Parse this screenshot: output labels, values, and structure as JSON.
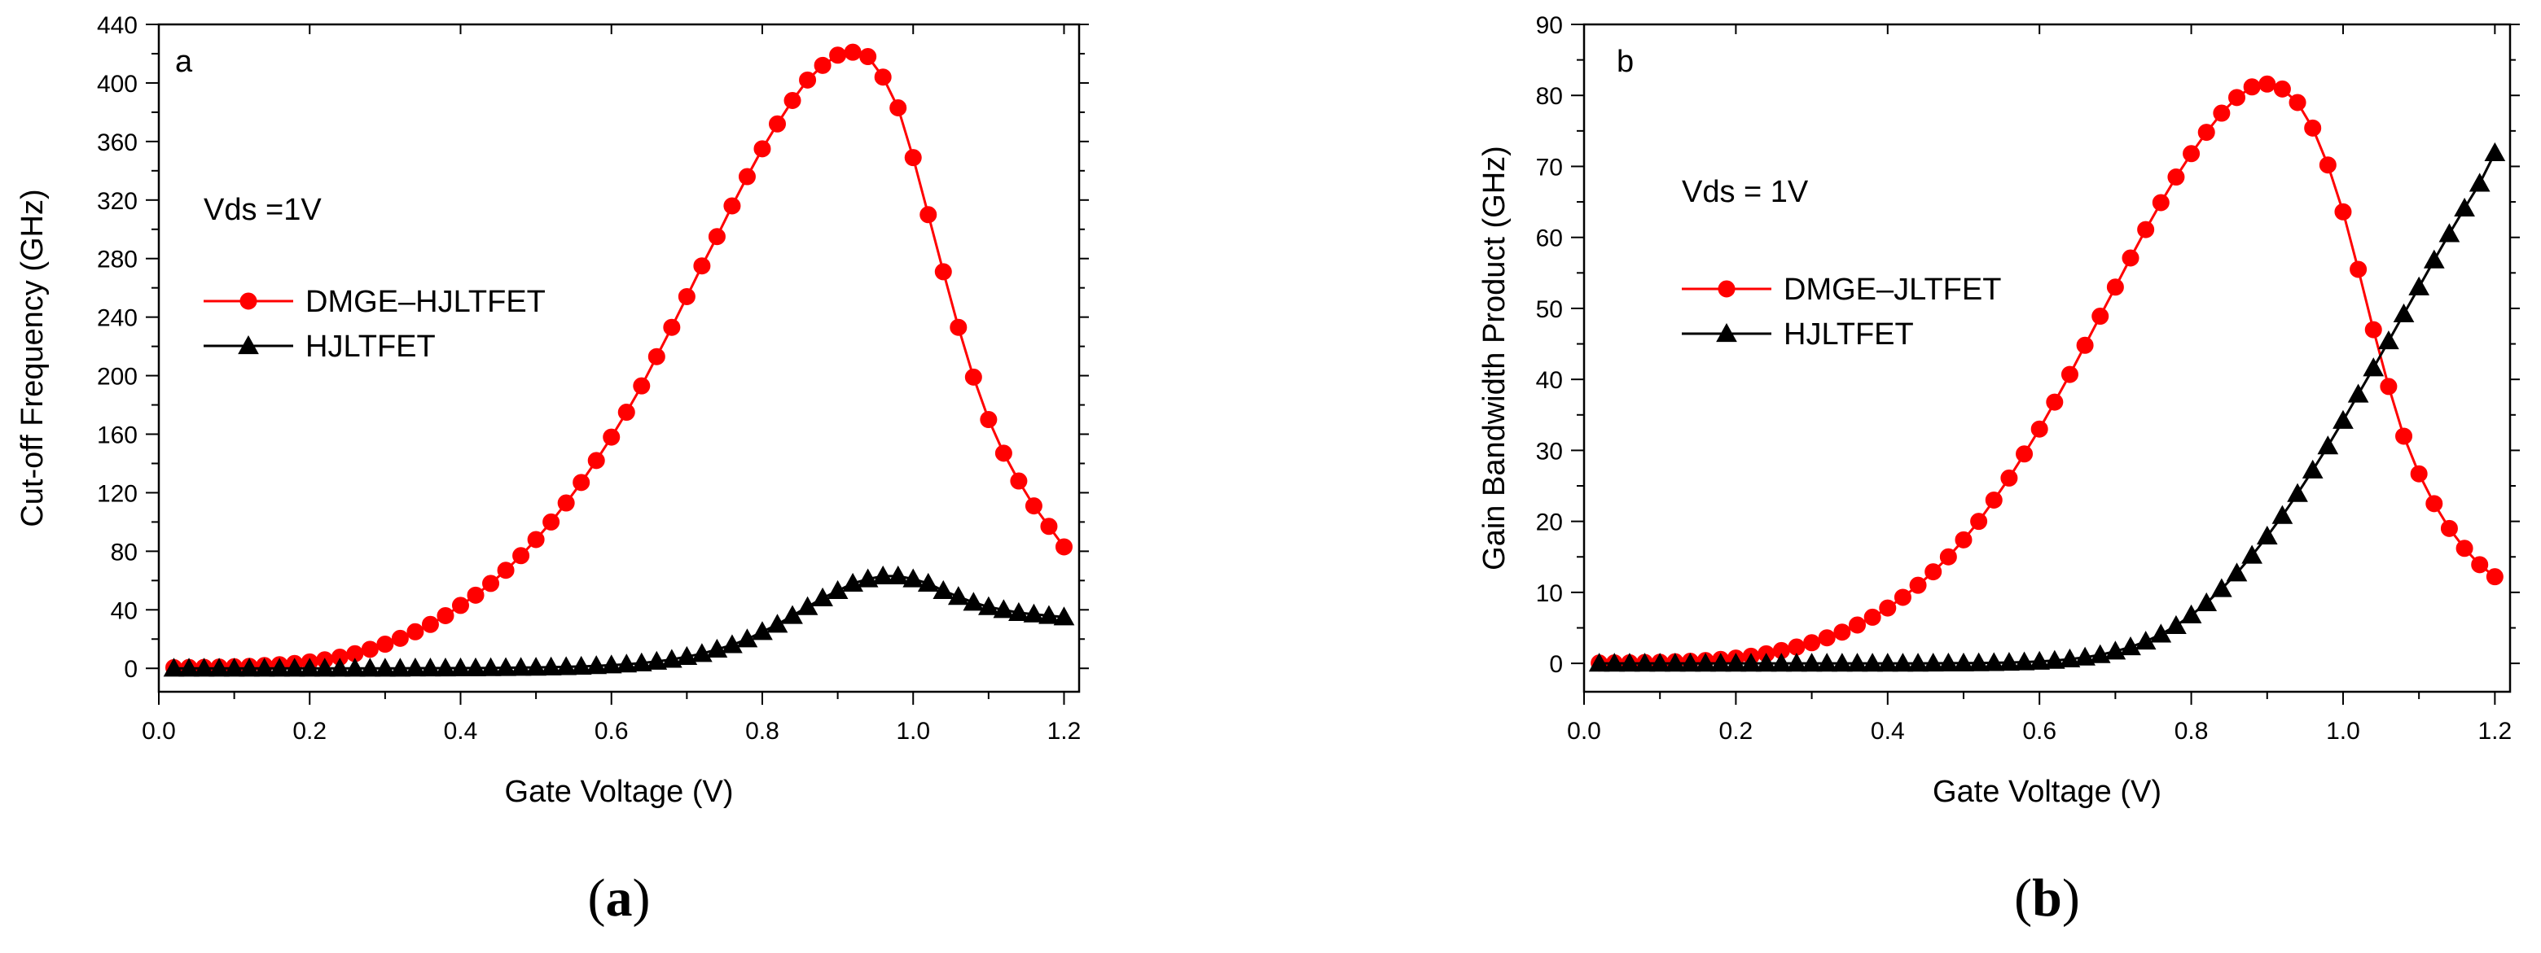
{
  "chart_data": [
    {
      "id": "a",
      "type": "line",
      "panel_letter": "a",
      "caption": {
        "open": "(",
        "letter": "a",
        "close": ")"
      },
      "annotation": "Vds =1V",
      "xlabel": "Gate Voltage (V)",
      "ylabel": "Cut-off Frequency (GHz)",
      "xlim": [
        0,
        1.22
      ],
      "ylim": [
        -16,
        440
      ],
      "xticks": [
        0.0,
        0.2,
        0.4,
        0.6,
        0.8,
        1.0,
        1.2
      ],
      "xtick_labels": [
        "0.0",
        "0.2",
        "0.4",
        "0.6",
        "0.8",
        "1.0",
        "1.2"
      ],
      "yticks": [
        0,
        40,
        80,
        120,
        160,
        200,
        240,
        280,
        320,
        360,
        400,
        440
      ],
      "ytick_labels": [
        "0",
        "40",
        "80",
        "120",
        "160",
        "200",
        "240",
        "280",
        "320",
        "360",
        "400",
        "440"
      ],
      "legend_position": "middle-left",
      "series": [
        {
          "name": "DMGE–HJLTFET",
          "color": "#ff0000",
          "marker": "circle",
          "x": [
            0.02,
            0.04,
            0.06,
            0.08,
            0.1,
            0.12,
            0.14,
            0.16,
            0.18,
            0.2,
            0.22,
            0.24,
            0.26,
            0.28,
            0.3,
            0.32,
            0.34,
            0.36,
            0.38,
            0.4,
            0.42,
            0.44,
            0.46,
            0.48,
            0.5,
            0.52,
            0.54,
            0.56,
            0.58,
            0.6,
            0.62,
            0.64,
            0.66,
            0.68,
            0.7,
            0.72,
            0.74,
            0.76,
            0.78,
            0.8,
            0.82,
            0.84,
            0.86,
            0.88,
            0.9,
            0.92,
            0.94,
            0.96,
            0.98,
            1.0,
            1.02,
            1.04,
            1.06,
            1.08,
            1.1,
            1.12,
            1.14,
            1.16,
            1.18,
            1.2
          ],
          "y": [
            0.5,
            0.6,
            0.7,
            0.9,
            1.1,
            1.4,
            1.9,
            2.5,
            3.3,
            4.4,
            5.8,
            7.6,
            10,
            13,
            16.5,
            20.5,
            25,
            30,
            36,
            43,
            50,
            58,
            67,
            77,
            88,
            100,
            113,
            127,
            142,
            158,
            175,
            193,
            213,
            233,
            254,
            275,
            295,
            316,
            336,
            355,
            372,
            388,
            402,
            412,
            419,
            421,
            418,
            404,
            383,
            349,
            310,
            271,
            233,
            199,
            170,
            147,
            128,
            111,
            97,
            83
          ]
        },
        {
          "name": "HJLTFET",
          "color": "#000000",
          "marker": "triangle",
          "x": [
            0.02,
            0.04,
            0.06,
            0.08,
            0.1,
            0.12,
            0.14,
            0.16,
            0.18,
            0.2,
            0.22,
            0.24,
            0.26,
            0.28,
            0.3,
            0.32,
            0.34,
            0.36,
            0.38,
            0.4,
            0.42,
            0.44,
            0.46,
            0.48,
            0.5,
            0.52,
            0.54,
            0.56,
            0.58,
            0.6,
            0.62,
            0.64,
            0.66,
            0.68,
            0.7,
            0.72,
            0.74,
            0.76,
            0.78,
            0.8,
            0.82,
            0.84,
            0.86,
            0.88,
            0.9,
            0.92,
            0.94,
            0.96,
            0.98,
            1.0,
            1.02,
            1.04,
            1.06,
            1.08,
            1.1,
            1.12,
            1.14,
            1.16,
            1.18,
            1.2
          ],
          "y": [
            0,
            0,
            0,
            0,
            0,
            0,
            0,
            0,
            0,
            0,
            0,
            0,
            0,
            0,
            0,
            0,
            0.1,
            0.1,
            0.1,
            0.2,
            0.2,
            0.3,
            0.4,
            0.5,
            0.6,
            0.8,
            1,
            1.3,
            1.7,
            2.2,
            2.8,
            3.6,
            4.7,
            6,
            8,
            10,
            13,
            16,
            20,
            25,
            30,
            36,
            42,
            48,
            53,
            58,
            61,
            63,
            63,
            61,
            58,
            53,
            49,
            45,
            42,
            40,
            38,
            37,
            36,
            35
          ]
        }
      ]
    },
    {
      "id": "b",
      "type": "line",
      "panel_letter": "b",
      "caption": {
        "open": "(",
        "letter": "b",
        "close": ")"
      },
      "annotation": "Vds = 1V",
      "xlabel": "Gate Voltage (V)",
      "ylabel": "Gain Bandwidth Product (GHz)",
      "xlim": [
        0,
        1.22
      ],
      "ylim": [
        -4,
        90
      ],
      "xticks": [
        0.0,
        0.2,
        0.4,
        0.6,
        0.8,
        1.0,
        1.2
      ],
      "xtick_labels": [
        "0.0",
        "0.2",
        "0.4",
        "0.6",
        "0.8",
        "1.0",
        "1.2"
      ],
      "yticks": [
        0,
        10,
        20,
        30,
        40,
        50,
        60,
        70,
        80,
        90
      ],
      "ytick_labels": [
        "0",
        "10",
        "20",
        "30",
        "40",
        "50",
        "60",
        "70",
        "80",
        "90"
      ],
      "legend_position": "middle-left",
      "series": [
        {
          "name": "DMGE–JLTFET",
          "color": "#ff0000",
          "marker": "circle",
          "x": [
            0.02,
            0.04,
            0.06,
            0.08,
            0.1,
            0.12,
            0.14,
            0.16,
            0.18,
            0.2,
            0.22,
            0.24,
            0.26,
            0.28,
            0.3,
            0.32,
            0.34,
            0.36,
            0.38,
            0.4,
            0.42,
            0.44,
            0.46,
            0.48,
            0.5,
            0.52,
            0.54,
            0.56,
            0.58,
            0.6,
            0.62,
            0.64,
            0.66,
            0.68,
            0.7,
            0.72,
            0.74,
            0.76,
            0.78,
            0.8,
            0.82,
            0.84,
            0.86,
            0.88,
            0.9,
            0.92,
            0.94,
            0.96,
            0.98,
            1.0,
            1.02,
            1.04,
            1.06,
            1.08,
            1.1,
            1.12,
            1.14,
            1.16,
            1.18,
            1.2
          ],
          "y": [
            0.05,
            0.07,
            0.09,
            0.12,
            0.16,
            0.22,
            0.3,
            0.4,
            0.55,
            0.75,
            1.0,
            1.35,
            1.8,
            2.3,
            2.9,
            3.6,
            4.4,
            5.4,
            6.5,
            7.8,
            9.3,
            11,
            12.9,
            15,
            17.4,
            20,
            23,
            26.1,
            29.5,
            33,
            36.8,
            40.7,
            44.8,
            48.9,
            53,
            57.1,
            61.1,
            64.9,
            68.5,
            71.8,
            74.8,
            77.5,
            79.7,
            81.2,
            81.6,
            80.9,
            79,
            75.4,
            70.2,
            63.6,
            55.5,
            47,
            39,
            32,
            26.7,
            22.5,
            19,
            16.2,
            13.9,
            12.2
          ]
        },
        {
          "name": "HJLTFET",
          "color": "#000000",
          "marker": "triangle",
          "x": [
            0.02,
            0.04,
            0.06,
            0.08,
            0.1,
            0.12,
            0.14,
            0.16,
            0.18,
            0.2,
            0.22,
            0.24,
            0.26,
            0.28,
            0.3,
            0.32,
            0.34,
            0.36,
            0.38,
            0.4,
            0.42,
            0.44,
            0.46,
            0.48,
            0.5,
            0.52,
            0.54,
            0.56,
            0.58,
            0.6,
            0.62,
            0.64,
            0.66,
            0.68,
            0.7,
            0.72,
            0.74,
            0.76,
            0.78,
            0.8,
            0.82,
            0.84,
            0.86,
            0.88,
            0.9,
            0.92,
            0.94,
            0.96,
            0.98,
            1.0,
            1.02,
            1.04,
            1.06,
            1.08,
            1.1,
            1.12,
            1.14,
            1.16,
            1.18,
            1.2
          ],
          "y": [
            0,
            0,
            0,
            0,
            0,
            0,
            0,
            0,
            0,
            0,
            0,
            0,
            0,
            0,
            0,
            0,
            0,
            0,
            0,
            0,
            0,
            0,
            0.01,
            0.02,
            0.03,
            0.05,
            0.08,
            0.12,
            0.18,
            0.27,
            0.4,
            0.6,
            0.85,
            1.2,
            1.7,
            2.3,
            3.1,
            4.1,
            5.3,
            6.8,
            8.5,
            10.5,
            12.7,
            15.2,
            17.9,
            20.8,
            23.9,
            27.2,
            30.6,
            34.2,
            37.9,
            41.6,
            45.4,
            49.2,
            53.0,
            56.8,
            60.5,
            64.1,
            67.6,
            71.9
          ]
        }
      ]
    }
  ]
}
